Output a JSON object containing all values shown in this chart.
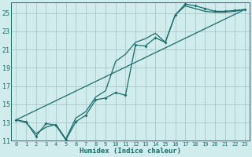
{
  "xlabel": "Humidex (Indice chaleur)",
  "bg_color": "#d0ecec",
  "grid_color": "#b0cccc",
  "line_color": "#1a6b6b",
  "xlim": [
    -0.5,
    23.5
  ],
  "ylim": [
    11,
    26.2
  ],
  "xticks": [
    0,
    1,
    2,
    3,
    4,
    5,
    6,
    7,
    8,
    9,
    10,
    11,
    12,
    13,
    14,
    15,
    16,
    17,
    18,
    19,
    20,
    21,
    22,
    23
  ],
  "yticks": [
    11,
    13,
    15,
    17,
    19,
    21,
    23,
    25
  ],
  "line1_x": [
    0,
    1,
    2,
    3,
    4,
    5,
    6,
    7,
    8,
    9,
    10,
    11,
    12,
    13,
    14,
    15,
    16,
    17,
    18,
    19,
    20,
    21,
    22,
    23
  ],
  "line1_y": [
    13.3,
    13.1,
    11.5,
    12.9,
    12.7,
    11.1,
    13.1,
    13.8,
    15.5,
    15.7,
    16.3,
    16.0,
    21.5,
    21.4,
    22.3,
    21.8,
    24.8,
    26.0,
    25.8,
    25.5,
    25.2,
    25.2,
    25.3,
    25.4
  ],
  "line2_x": [
    0,
    1,
    2,
    3,
    4,
    5,
    6,
    7,
    8,
    9,
    10,
    11,
    12,
    13,
    14,
    15,
    16,
    17,
    18,
    19,
    20,
    21,
    22,
    23
  ],
  "line2_y": [
    13.3,
    13.0,
    11.8,
    12.5,
    12.8,
    11.2,
    13.5,
    14.2,
    15.8,
    16.5,
    19.7,
    20.5,
    21.8,
    22.2,
    22.8,
    21.8,
    24.8,
    25.8,
    25.5,
    25.2,
    25.1,
    25.1,
    25.2,
    25.4
  ],
  "line3_x": [
    0,
    23
  ],
  "line3_y": [
    13.3,
    25.4
  ]
}
